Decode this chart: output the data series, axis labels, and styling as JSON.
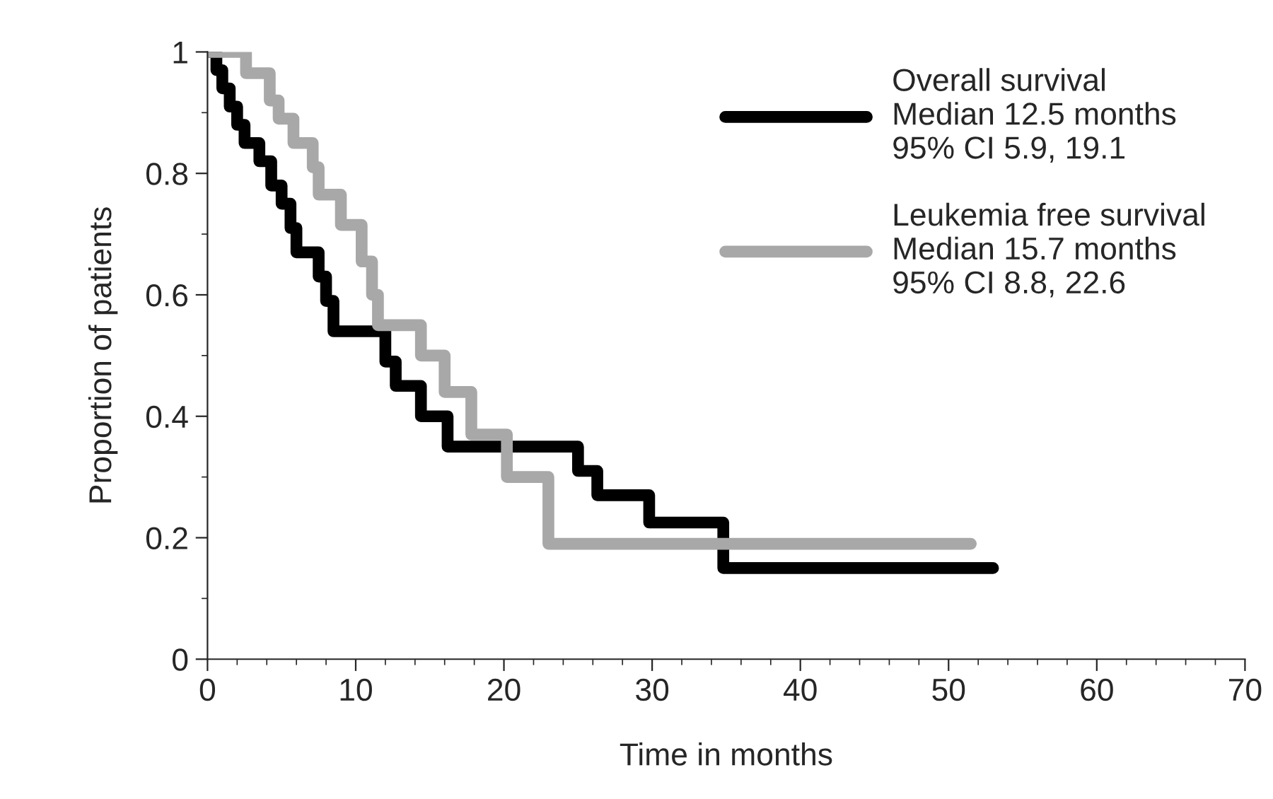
{
  "chart_data": {
    "type": "step",
    "xlabel": "Time in months",
    "ylabel": "Proportion of patients",
    "xlim": [
      0,
      70
    ],
    "xticks": [
      0,
      10,
      20,
      30,
      40,
      50,
      60,
      70
    ],
    "ylim": [
      0,
      1
    ],
    "yticks": [
      0,
      0.2,
      0.4,
      0.6,
      0.8,
      1
    ],
    "grid": false,
    "legend": "top right",
    "line_style": "solid",
    "marker": "none",
    "series": [
      {
        "name": "Overall survival\nMedian 12.5 months\n95% CI 5.9, 19.1",
        "color": "#000000",
        "x": [
          0,
          0.6,
          1,
          1.5,
          2,
          2.5,
          3.5,
          4.3,
          5,
          5.6,
          6,
          7.5,
          8,
          8.5,
          12,
          12.7,
          14.4,
          16.2,
          25,
          26.3,
          29.8,
          34.8,
          53
        ],
        "values": [
          1.0,
          0.97,
          0.94,
          0.91,
          0.88,
          0.85,
          0.82,
          0.78,
          0.75,
          0.71,
          0.67,
          0.63,
          0.59,
          0.54,
          0.49,
          0.45,
          0.4,
          0.35,
          0.31,
          0.27,
          0.225,
          0.15,
          0.15
        ]
      },
      {
        "name": "Leukemia free survival\nMedian 15.7 months\n95% CI 8.8, 22.6",
        "color": "#a8a8a8",
        "x": [
          0,
          2.6,
          4.2,
          4.8,
          5.8,
          7.1,
          7.5,
          9.0,
          10.4,
          11.1,
          11.5,
          14.4,
          16,
          17.8,
          20.2,
          23.0,
          51.5
        ],
        "values": [
          1.0,
          0.965,
          0.92,
          0.89,
          0.85,
          0.81,
          0.765,
          0.715,
          0.655,
          0.6,
          0.55,
          0.5,
          0.44,
          0.37,
          0.3,
          0.19,
          0.19
        ]
      }
    ]
  }
}
